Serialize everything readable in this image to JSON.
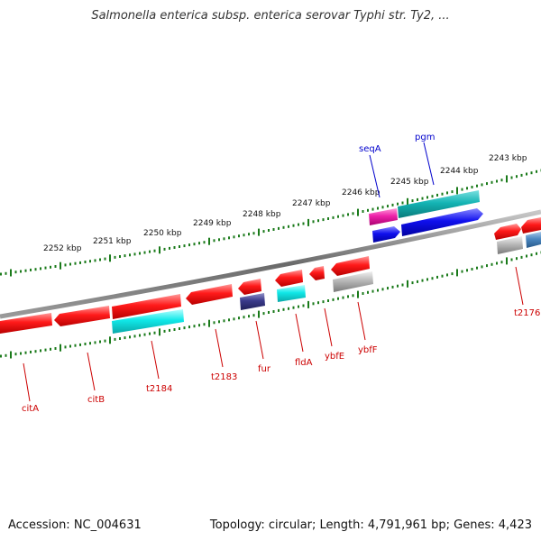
{
  "title": "Salmonella enterica subsp. enterica serovar Typhi str. Ty2, ...",
  "footer": {
    "accession": "Accession: NC_004631",
    "summary": "Topology: circular; Length: 4,791,961 bp; Genes: 4,423"
  },
  "scale_ticks": [
    "2252 kbp",
    "2251 kbp",
    "2250 kbp",
    "2249 kbp",
    "2248 kbp",
    "2247 kbp",
    "2246 kbp",
    "2245 kbp",
    "2244 kbp",
    "2243 kbp"
  ],
  "gene_labels": {
    "top": [
      "seqA",
      "pgm"
    ],
    "bottom": [
      "citA",
      "citB",
      "t2184",
      "t2183",
      "fur",
      "fldA",
      "ybfE",
      "ybfF",
      "t2176"
    ]
  },
  "colors": {
    "red_gene": "#ee1111",
    "cyan_gene": "#11dddd",
    "blue_gene": "#1111dd",
    "magenta_gene": "#ee22aa",
    "teal_gene": "#14b4b4",
    "navy_gene": "#3a3a8a",
    "gray_gene": "#b0b0b0",
    "backbone": "#777777",
    "tick": "#1a7a1a",
    "label_red": "#cc0000",
    "label_blue": "#0000cc"
  }
}
